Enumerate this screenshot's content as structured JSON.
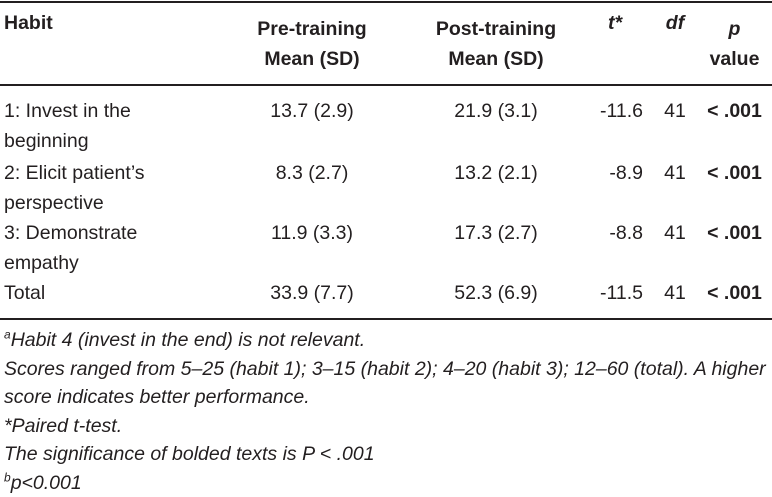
{
  "table": {
    "headers": {
      "habit": "Habit",
      "pre_line1": "Pre-training",
      "pre_line2": "Mean (SD)",
      "post_line1": "Post-training",
      "post_line2": "Mean (SD)",
      "t": "t*",
      "df": "df",
      "p_line1": "p",
      "p_line2": "value"
    },
    "rows": [
      {
        "habit_line1": "1: Invest in the",
        "habit_line2": "beginning",
        "pre": "13.7 (2.9)",
        "post": "21.9 (3.1)",
        "t": "-11.6",
        "df": "41",
        "p": "< .001"
      },
      {
        "habit_line1": "2: Elicit patient’s",
        "habit_line2": "perspective",
        "pre": "8.3 (2.7)",
        "post": "13.2 (2.1)",
        "t": "-8.9",
        "df": "41",
        "p": "< .001"
      },
      {
        "habit_line1": "3: Demonstrate",
        "habit_line2": "empathy",
        "pre": "11.9 (3.3)",
        "post": "17.3 (2.7)",
        "t": "-8.8",
        "df": "41",
        "p": "< .001"
      },
      {
        "habit_line1": "Total",
        "habit_line2": "",
        "pre": "33.9 (7.7)",
        "post": "52.3 (6.9)",
        "t": "-11.5",
        "df": "41",
        "p": "< .001"
      }
    ]
  },
  "notes": {
    "note_a_marker": "a",
    "note_a_text": "Habit 4 (invest in the end) is not relevant.",
    "note_scores_line1": "Scores ranged from 5–25 (habit 1); 3–15 (habit 2); 4–20 (habit 3); 12–60 (total). A higher",
    "note_scores_line2": "score indicates better performance.",
    "note_paired": "*Paired t-test.",
    "note_significance": "The significance of bolded texts is P < .001",
    "note_b_marker": "b",
    "note_b_text": "p<0.001"
  }
}
